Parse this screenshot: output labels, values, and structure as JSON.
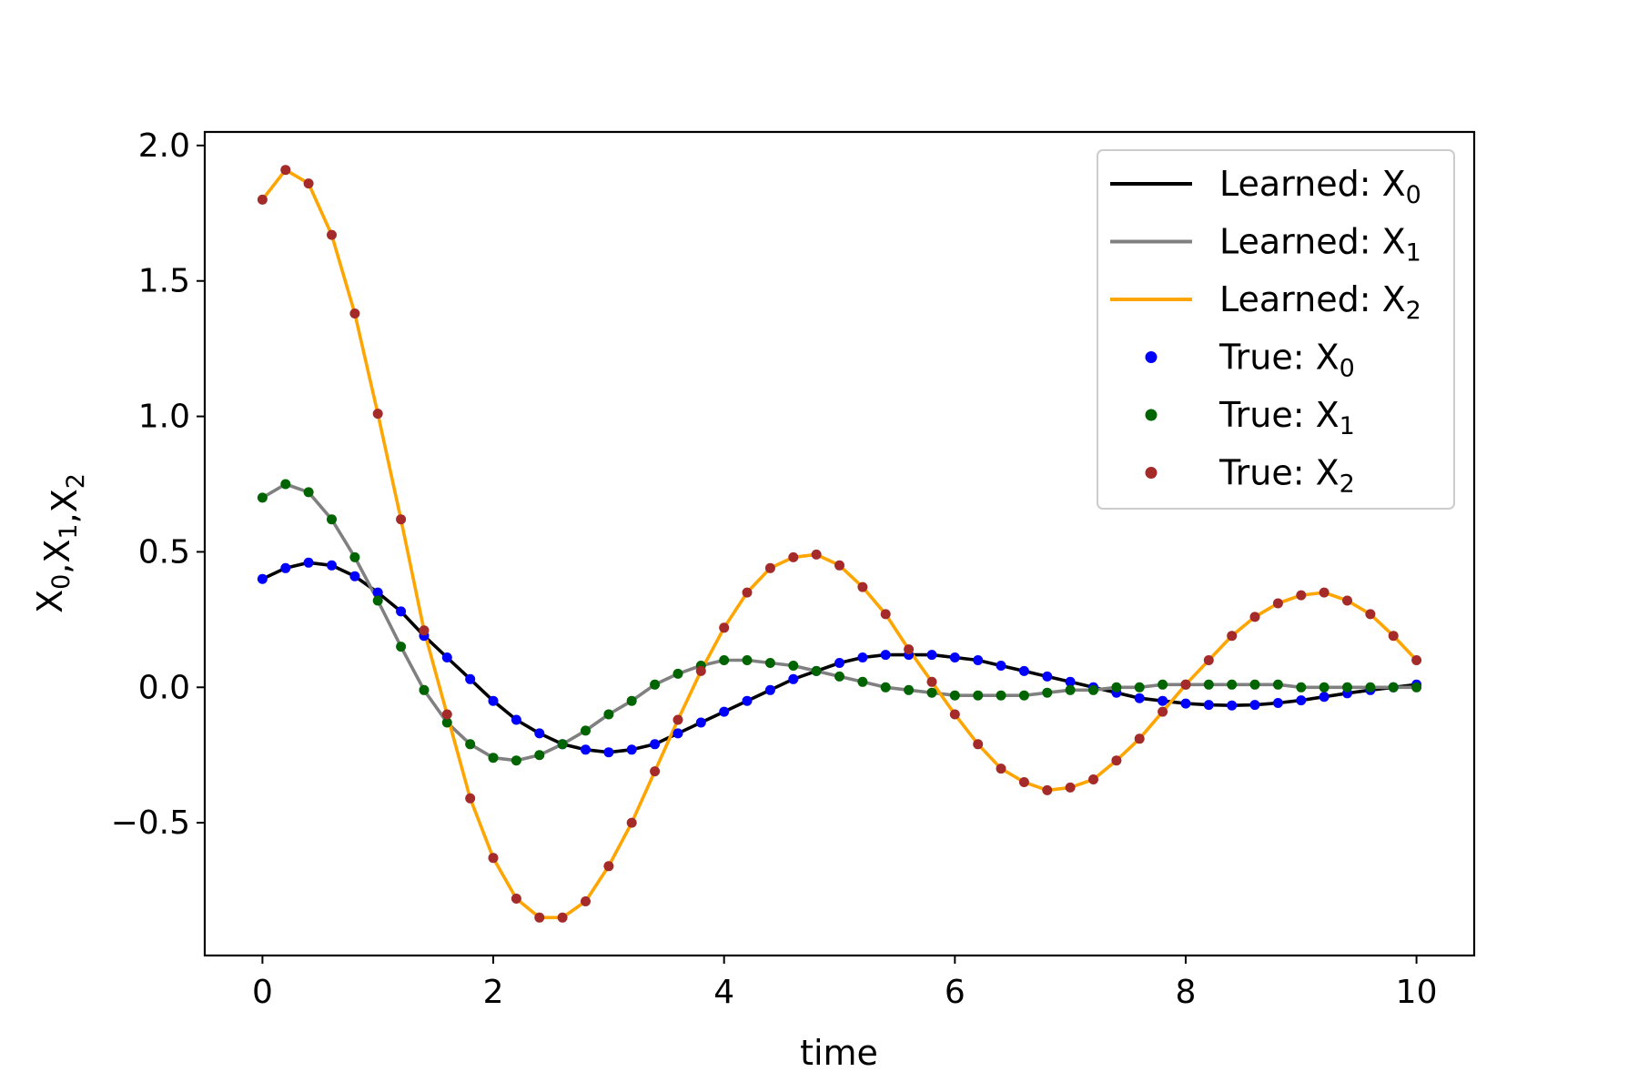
{
  "chart_data": {
    "type": "line",
    "xlabel": "time",
    "ylabel": {
      "parts": [
        {
          "t": "X",
          "s": "0"
        },
        {
          "t": ",X",
          "s": "1"
        },
        {
          "t": ",X",
          "s": "2"
        }
      ]
    },
    "xlim": [
      -0.5,
      10.5
    ],
    "ylim": [
      -0.99,
      2.05
    ],
    "xticks": [
      0,
      2,
      4,
      6,
      8,
      10
    ],
    "xtick_labels": [
      "0",
      "2",
      "4",
      "6",
      "8",
      "10"
    ],
    "yticks": [
      -0.5,
      0.0,
      0.5,
      1.0,
      1.5,
      2.0
    ],
    "ytick_labels": [
      "−0.5",
      "0.0",
      "0.5",
      "1.0",
      "1.5",
      "2.0"
    ],
    "grid": false,
    "legend_position": "top-right",
    "x": [
      0.0,
      0.2,
      0.4,
      0.6,
      0.8,
      1.0,
      1.2,
      1.4,
      1.6,
      1.8,
      2.0,
      2.2,
      2.4,
      2.6,
      2.8,
      3.0,
      3.2,
      3.4,
      3.6,
      3.8,
      4.0,
      4.2,
      4.4,
      4.6,
      4.8,
      5.0,
      5.2,
      5.4,
      5.6,
      5.8,
      6.0,
      6.2,
      6.4,
      6.6,
      6.8,
      7.0,
      7.2,
      7.4,
      7.6,
      7.8,
      8.0,
      8.2,
      8.4,
      8.6,
      8.8,
      9.0,
      9.2,
      9.4,
      9.6,
      9.8,
      10.0
    ],
    "series": [
      {
        "name": "Learned: X",
        "sub": "0",
        "kind": "line",
        "color": "#000000",
        "values": [
          0.4,
          0.44,
          0.46,
          0.45,
          0.41,
          0.35,
          0.28,
          0.19,
          0.11,
          0.03,
          -0.05,
          -0.12,
          -0.17,
          -0.21,
          -0.23,
          -0.24,
          -0.23,
          -0.21,
          -0.17,
          -0.13,
          -0.09,
          -0.05,
          -0.01,
          0.03,
          0.06,
          0.09,
          0.11,
          0.12,
          0.12,
          0.12,
          0.11,
          0.1,
          0.08,
          0.06,
          0.04,
          0.02,
          0.0,
          -0.02,
          -0.04,
          -0.05,
          -0.06,
          -0.065,
          -0.067,
          -0.065,
          -0.058,
          -0.048,
          -0.035,
          -0.022,
          -0.01,
          0.0,
          0.01
        ]
      },
      {
        "name": "Learned: X",
        "sub": "1",
        "kind": "line",
        "color": "#808080",
        "values": [
          0.7,
          0.75,
          0.72,
          0.62,
          0.48,
          0.32,
          0.15,
          -0.01,
          -0.13,
          -0.21,
          -0.26,
          -0.27,
          -0.25,
          -0.21,
          -0.16,
          -0.1,
          -0.05,
          0.01,
          0.05,
          0.08,
          0.1,
          0.1,
          0.09,
          0.08,
          0.06,
          0.04,
          0.02,
          0.0,
          -0.01,
          -0.02,
          -0.03,
          -0.03,
          -0.03,
          -0.03,
          -0.02,
          -0.01,
          -0.01,
          0.0,
          0.0,
          0.01,
          0.01,
          0.01,
          0.01,
          0.01,
          0.01,
          0.0,
          0.0,
          0.0,
          0.0,
          0.0,
          0.0
        ]
      },
      {
        "name": "Learned: X",
        "sub": "2",
        "kind": "line",
        "color": "#ffa500",
        "values": [
          1.8,
          1.91,
          1.86,
          1.67,
          1.38,
          1.01,
          0.62,
          0.21,
          -0.1,
          -0.41,
          -0.63,
          -0.78,
          -0.85,
          -0.85,
          -0.79,
          -0.66,
          -0.5,
          -0.31,
          -0.12,
          0.06,
          0.22,
          0.35,
          0.44,
          0.48,
          0.49,
          0.45,
          0.37,
          0.27,
          0.14,
          0.02,
          -0.1,
          -0.21,
          -0.3,
          -0.35,
          -0.38,
          -0.37,
          -0.34,
          -0.27,
          -0.19,
          -0.09,
          0.01,
          0.1,
          0.19,
          0.26,
          0.31,
          0.34,
          0.35,
          0.32,
          0.27,
          0.19,
          0.1
        ]
      },
      {
        "name": "True: X",
        "sub": "0",
        "kind": "scatter",
        "color": "#0000ff",
        "values": [
          0.4,
          0.44,
          0.46,
          0.45,
          0.41,
          0.35,
          0.28,
          0.19,
          0.11,
          0.03,
          -0.05,
          -0.12,
          -0.17,
          -0.21,
          -0.23,
          -0.24,
          -0.23,
          -0.21,
          -0.17,
          -0.13,
          -0.09,
          -0.05,
          -0.01,
          0.03,
          0.06,
          0.09,
          0.11,
          0.12,
          0.12,
          0.12,
          0.11,
          0.1,
          0.08,
          0.06,
          0.04,
          0.02,
          0.0,
          -0.02,
          -0.04,
          -0.05,
          -0.06,
          -0.065,
          -0.067,
          -0.065,
          -0.058,
          -0.048,
          -0.035,
          -0.022,
          -0.01,
          0.0,
          0.01
        ]
      },
      {
        "name": "True: X",
        "sub": "1",
        "kind": "scatter",
        "color": "#006400",
        "values": [
          0.7,
          0.75,
          0.72,
          0.62,
          0.48,
          0.32,
          0.15,
          -0.01,
          -0.13,
          -0.21,
          -0.26,
          -0.27,
          -0.25,
          -0.21,
          -0.16,
          -0.1,
          -0.05,
          0.01,
          0.05,
          0.08,
          0.1,
          0.1,
          0.09,
          0.08,
          0.06,
          0.04,
          0.02,
          0.0,
          -0.01,
          -0.02,
          -0.03,
          -0.03,
          -0.03,
          -0.03,
          -0.02,
          -0.01,
          -0.01,
          0.0,
          0.0,
          0.01,
          0.01,
          0.01,
          0.01,
          0.01,
          0.01,
          0.0,
          0.0,
          0.0,
          0.0,
          0.0,
          0.0
        ]
      },
      {
        "name": "True: X",
        "sub": "2",
        "kind": "scatter",
        "color": "#a52a2a",
        "values": [
          1.8,
          1.91,
          1.86,
          1.67,
          1.38,
          1.01,
          0.62,
          0.21,
          -0.1,
          -0.41,
          -0.63,
          -0.78,
          -0.85,
          -0.85,
          -0.79,
          -0.66,
          -0.5,
          -0.31,
          -0.12,
          0.06,
          0.22,
          0.35,
          0.44,
          0.48,
          0.49,
          0.45,
          0.37,
          0.27,
          0.14,
          0.02,
          -0.1,
          -0.21,
          -0.3,
          -0.35,
          -0.38,
          -0.37,
          -0.34,
          -0.27,
          -0.19,
          -0.09,
          0.01,
          0.1,
          0.19,
          0.26,
          0.31,
          0.34,
          0.35,
          0.32,
          0.27,
          0.19,
          0.1
        ]
      }
    ]
  }
}
